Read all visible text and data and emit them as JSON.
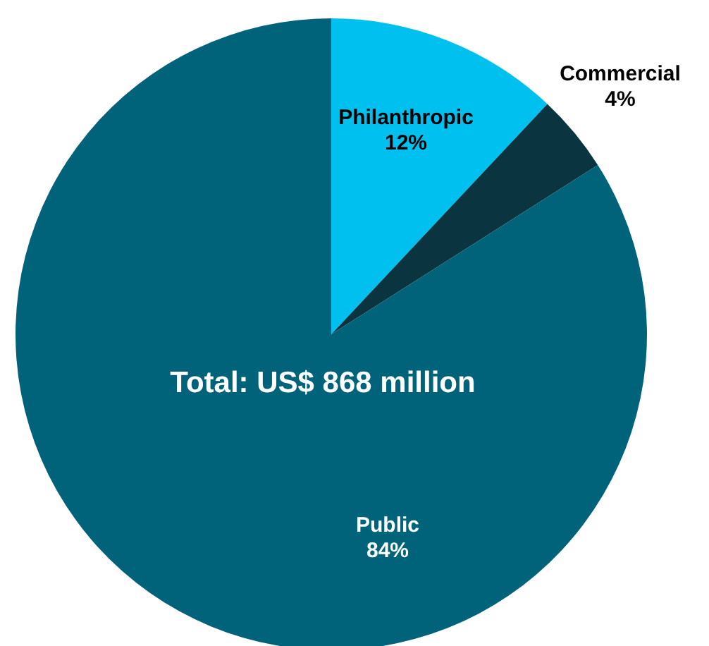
{
  "chart_data": {
    "type": "pie",
    "categories": [
      "Philanthropic",
      "Commercial",
      "Public"
    ],
    "values": [
      12,
      4,
      84
    ],
    "colors": [
      "#00c0ef",
      "#0a3540",
      "#00637a"
    ],
    "value_labels": [
      "12%",
      "4%",
      "84%"
    ],
    "annotations": [
      "Total: US$ 868 million"
    ]
  }
}
